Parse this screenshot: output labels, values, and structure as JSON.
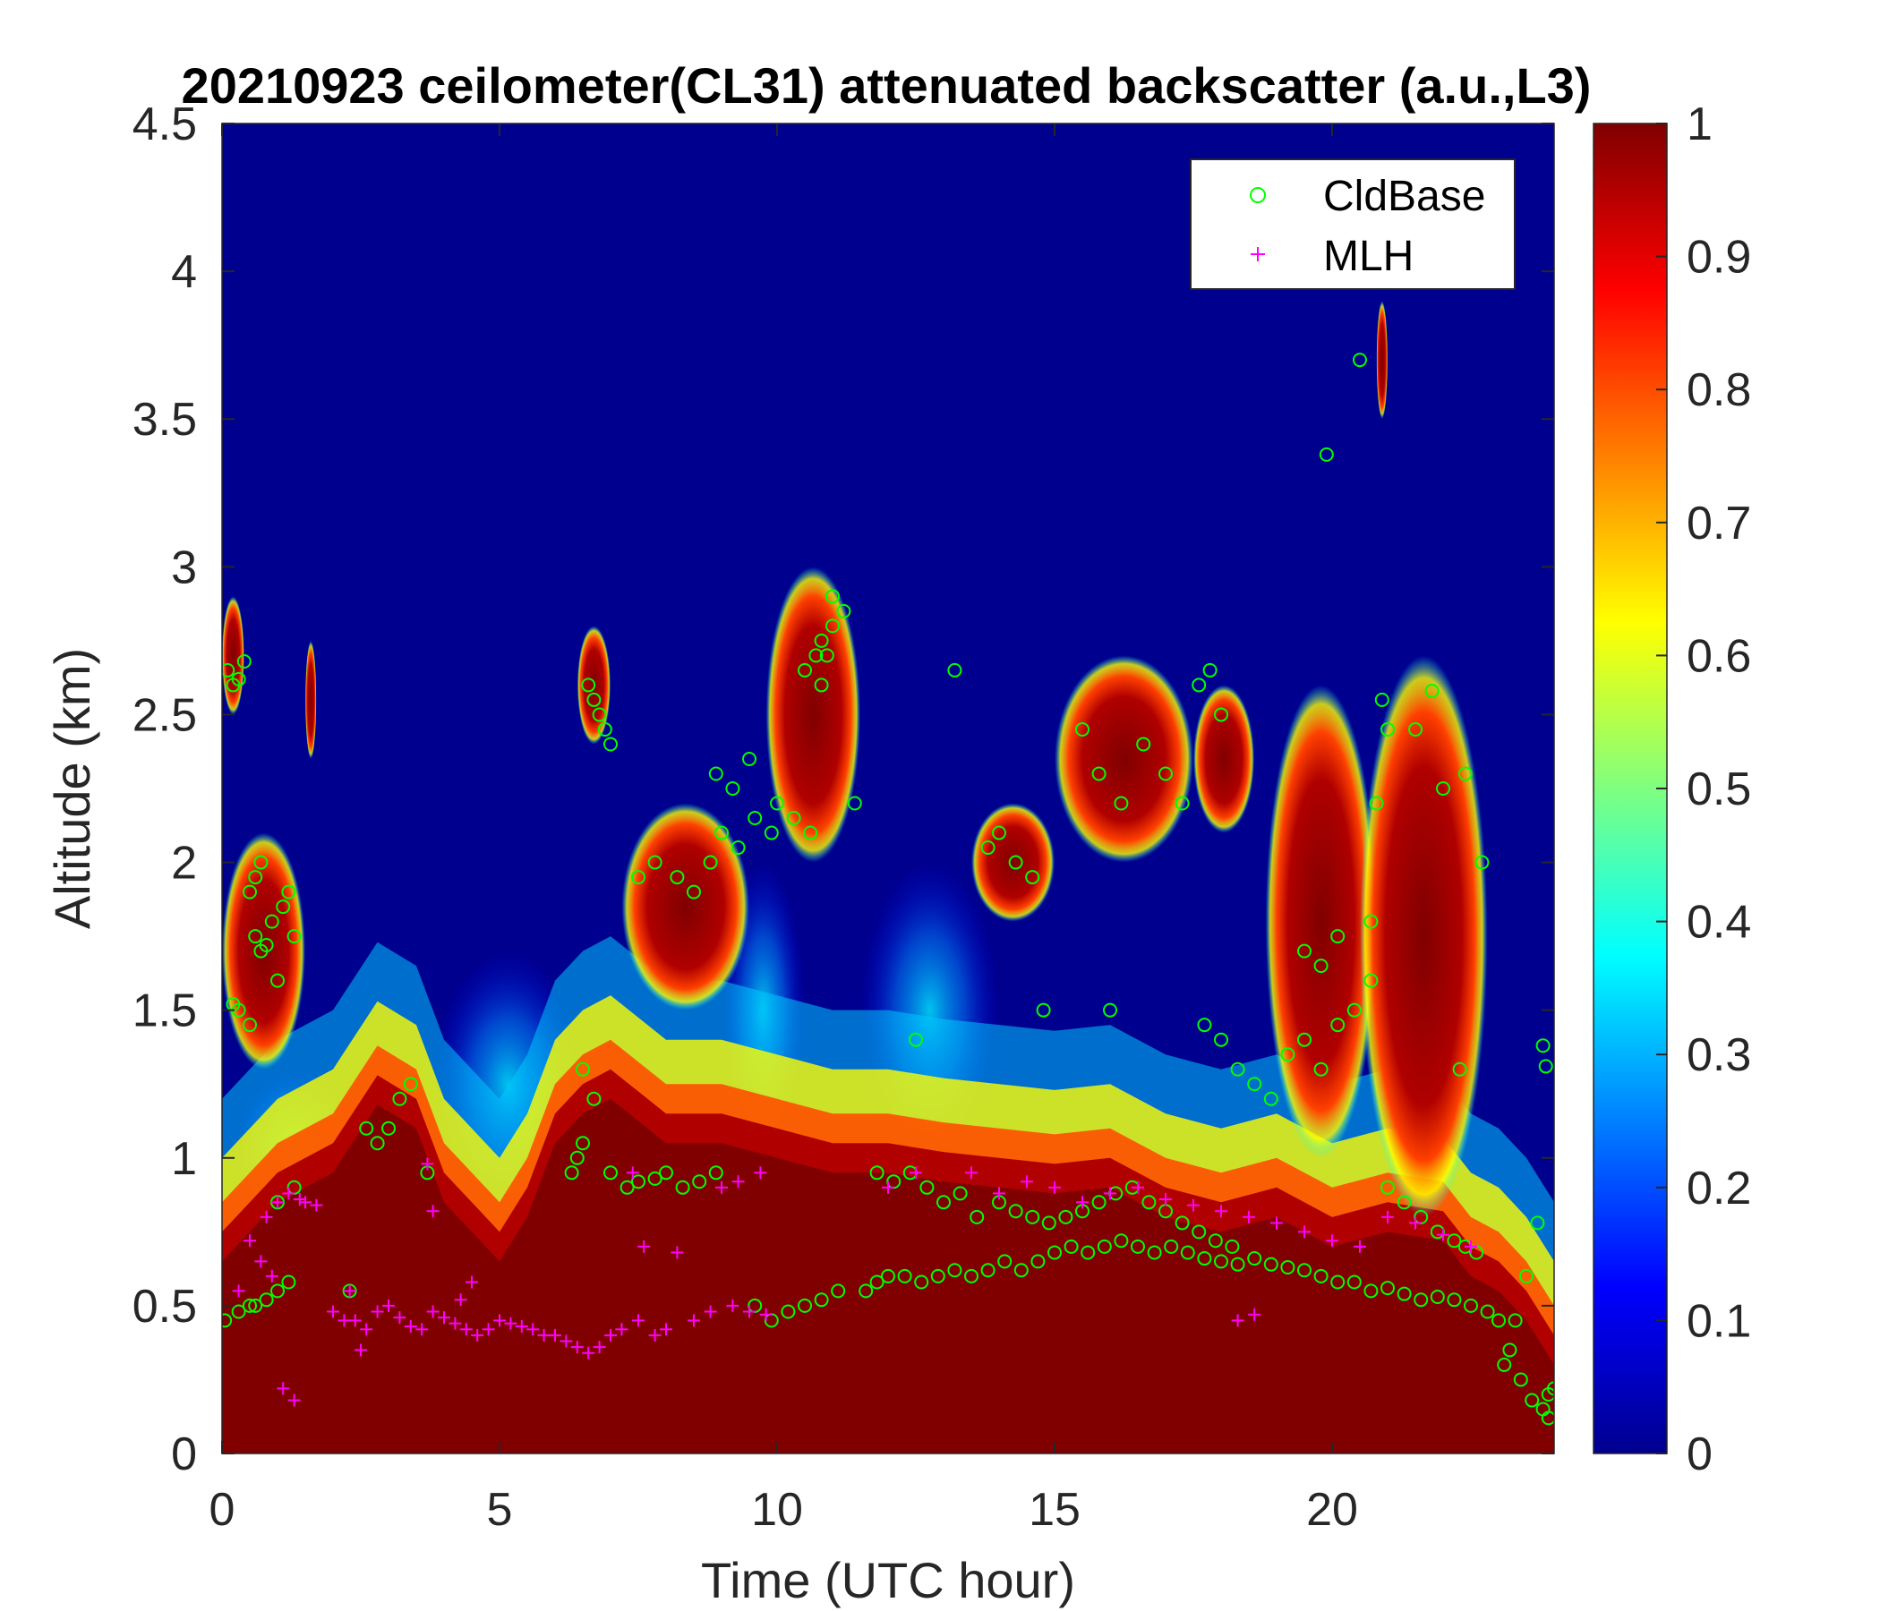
{
  "chart_data": {
    "type": "heatmap",
    "title": "20210923 ceilometer(CL31) attenuated backscatter (a.u.,L3)",
    "xlabel": "Time (UTC hour)",
    "ylabel": "Altitude (km)",
    "xlim": [
      0,
      24
    ],
    "ylim": [
      0,
      4.5
    ],
    "x_ticks": [
      0,
      5,
      10,
      15,
      20
    ],
    "x_tick_labels": [
      "0",
      "5",
      "10",
      "15",
      "20"
    ],
    "y_ticks": [
      0,
      0.5,
      1,
      1.5,
      2,
      2.5,
      3,
      3.5,
      4,
      4.5
    ],
    "y_tick_labels": [
      "0",
      "0.5",
      "1",
      "1.5",
      "2",
      "2.5",
      "3",
      "3.5",
      "4",
      "4.5"
    ],
    "colorbar": {
      "colormap": "jet",
      "clim": [
        0,
        1
      ],
      "ticks": [
        0,
        0.1,
        0.2,
        0.3,
        0.4,
        0.5,
        0.6,
        0.7,
        0.8,
        0.9,
        1
      ],
      "tick_labels": [
        "0",
        "0.1",
        "0.2",
        "0.3",
        "0.4",
        "0.5",
        "0.6",
        "0.7",
        "0.8",
        "0.9",
        "1"
      ]
    },
    "legend": {
      "placement": "top-right",
      "entries": [
        {
          "name": "CldBase",
          "marker": "circle",
          "color": "#00ff00"
        },
        {
          "name": "MLH",
          "marker": "plus",
          "color": "#ff00ff"
        }
      ]
    },
    "backscatter_layer_top_km": [
      [
        0,
        0.65
      ],
      [
        1,
        0.85
      ],
      [
        2,
        0.95
      ],
      [
        2.8,
        1.18
      ],
      [
        3.5,
        1.1
      ],
      [
        4,
        0.85
      ],
      [
        4.5,
        0.75
      ],
      [
        5,
        0.65
      ],
      [
        5.5,
        0.8
      ],
      [
        6,
        1.05
      ],
      [
        6.5,
        1.15
      ],
      [
        7,
        1.2
      ],
      [
        8,
        1.05
      ],
      [
        9,
        1.05
      ],
      [
        10,
        1.0
      ],
      [
        11,
        0.95
      ],
      [
        12,
        0.95
      ],
      [
        13,
        0.92
      ],
      [
        14,
        0.9
      ],
      [
        15,
        0.88
      ],
      [
        16,
        0.9
      ],
      [
        17,
        0.8
      ],
      [
        18,
        0.75
      ],
      [
        19,
        0.8
      ],
      [
        20,
        0.7
      ],
      [
        21,
        0.75
      ],
      [
        22,
        0.72
      ],
      [
        22.5,
        0.6
      ],
      [
        23,
        0.55
      ],
      [
        23.5,
        0.45
      ],
      [
        24,
        0.3
      ]
    ],
    "cloud_layers": [
      {
        "x": [
          0,
          0.4
        ],
        "y": [
          2.5,
          2.9
        ],
        "value": 0.9
      },
      {
        "x": [
          0.0,
          1.5
        ],
        "y": [
          1.3,
          2.1
        ],
        "value": 0.85
      },
      {
        "x": [
          1.5,
          1.7
        ],
        "y": [
          2.35,
          2.75
        ],
        "value": 0.85
      },
      {
        "x": [
          6.4,
          7.0
        ],
        "y": [
          2.4,
          2.8
        ],
        "value": 0.85
      },
      {
        "x": [
          7.2,
          9.5
        ],
        "y": [
          1.5,
          2.2
        ],
        "value": 0.9
      },
      {
        "x": [
          9.8,
          11.5
        ],
        "y": [
          2.0,
          3.0
        ],
        "value": 0.9
      },
      {
        "x": [
          13.5,
          15.0
        ],
        "y": [
          1.8,
          2.2
        ],
        "value": 0.85
      },
      {
        "x": [
          15.0,
          17.5
        ],
        "y": [
          2.0,
          2.7
        ],
        "value": 0.9
      },
      {
        "x": [
          17.5,
          18.6
        ],
        "y": [
          2.1,
          2.6
        ],
        "value": 0.95
      },
      {
        "x": [
          18.8,
          20.8
        ],
        "y": [
          1.0,
          2.6
        ],
        "value": 0.8
      },
      {
        "x": [
          20.5,
          22.8
        ],
        "y": [
          0.8,
          2.7
        ],
        "value": 0.85
      },
      {
        "x": [
          20.8,
          21.0
        ],
        "y": [
          3.5,
          3.9
        ],
        "value": 0.9
      }
    ],
    "aerosol_plumes": [
      {
        "x": [
          3.8,
          6.5
        ],
        "y": [
          0.8,
          1.7
        ],
        "value": 0.3
      },
      {
        "x": [
          0.2,
          2.5
        ],
        "y": [
          0.75,
          1.3
        ],
        "value": 0.25
      },
      {
        "x": [
          9.0,
          10.5
        ],
        "y": [
          1.0,
          2.0
        ],
        "value": 0.3
      },
      {
        "x": [
          11.5,
          14.0
        ],
        "y": [
          1.0,
          2.0
        ],
        "value": 0.2
      }
    ],
    "series": [
      {
        "name": "CldBase",
        "marker": "circle",
        "color": "#00ff00",
        "x": [
          0.05,
          0.1,
          0.2,
          0.3,
          0.4,
          0.2,
          0.3,
          0.5,
          0.6,
          0.7,
          0.8,
          0.9,
          1.0,
          1.1,
          1.2,
          1.3,
          0.6,
          0.7,
          0.5,
          0.5,
          0.8,
          1.0,
          1.2,
          0.3,
          0.6,
          1.0,
          1.3,
          2.3,
          2.6,
          2.8,
          3.0,
          3.2,
          3.4,
          3.7,
          6.3,
          6.4,
          6.5,
          6.6,
          6.7,
          6.8,
          6.9,
          7.0,
          6.5,
          6.7,
          7.0,
          7.3,
          7.5,
          7.8,
          8.0,
          8.3,
          8.6,
          8.9,
          7.5,
          7.8,
          8.2,
          8.5,
          8.8,
          9.0,
          9.3,
          9.6,
          9.9,
          8.9,
          9.2,
          9.5,
          10.0,
          10.3,
          10.6,
          10.8,
          10.9,
          11.0,
          11.2,
          11.4,
          10.5,
          10.7,
          10.8,
          11.0,
          9.6,
          9.9,
          10.2,
          10.5,
          10.8,
          11.1,
          11.6,
          11.8,
          12.0,
          12.3,
          12.6,
          12.9,
          13.2,
          13.5,
          13.8,
          14.1,
          14.4,
          14.7,
          15.0,
          15.3,
          15.6,
          15.9,
          16.2,
          16.5,
          16.8,
          17.1,
          17.4,
          17.7,
          18.0,
          18.3,
          18.6,
          18.9,
          19.2,
          19.5,
          19.8,
          20.1,
          20.4,
          20.7,
          21.0,
          21.3,
          21.6,
          21.9,
          22.2,
          22.5,
          22.8,
          23.0,
          23.2,
          23.4,
          23.6,
          23.8,
          23.9,
          11.8,
          12.1,
          12.4,
          12.7,
          13.0,
          13.3,
          13.6,
          14.0,
          14.3,
          14.6,
          14.9,
          15.2,
          15.5,
          15.8,
          16.1,
          16.4,
          16.7,
          17.0,
          17.3,
          17.6,
          17.9,
          18.2,
          13.8,
          14.0,
          14.3,
          14.6,
          15.5,
          15.8,
          16.2,
          16.6,
          17.0,
          17.3,
          17.6,
          17.8,
          18.0,
          17.7,
          18.0,
          18.3,
          18.6,
          18.9,
          19.2,
          19.5,
          19.8,
          20.1,
          20.4,
          20.7,
          19.5,
          19.8,
          20.1,
          20.7,
          21.0,
          21.3,
          21.6,
          21.9,
          22.2,
          22.4,
          22.6,
          20.9,
          21.0,
          20.8,
          21.5,
          22.0,
          22.4,
          13.2,
          12.5,
          14.8,
          16.0,
          19.9,
          20.5,
          22.7,
          23.8,
          23.85,
          23.7,
          23.5,
          23.3,
          23.1,
          23.9,
          24.0,
          21.8,
          22.3
        ],
        "y": [
          0.45,
          2.65,
          2.6,
          2.62,
          2.68,
          1.52,
          1.5,
          1.9,
          1.75,
          1.7,
          1.72,
          1.8,
          1.6,
          1.85,
          1.9,
          1.75,
          1.95,
          2.0,
          1.45,
          0.5,
          0.52,
          0.55,
          0.58,
          0.48,
          0.5,
          0.85,
          0.9,
          0.55,
          1.1,
          1.05,
          1.1,
          1.2,
          1.25,
          0.95,
          0.95,
          1.0,
          1.05,
          2.6,
          2.55,
          2.5,
          2.45,
          2.4,
          1.3,
          1.2,
          0.95,
          0.9,
          0.92,
          0.93,
          0.95,
          0.9,
          0.92,
          0.95,
          1.95,
          2.0,
          1.95,
          1.9,
          2.0,
          2.1,
          2.05,
          2.15,
          2.1,
          2.3,
          2.25,
          2.35,
          2.2,
          2.15,
          2.1,
          2.6,
          2.7,
          2.8,
          2.85,
          2.2,
          2.65,
          2.7,
          2.75,
          2.9,
          0.5,
          0.45,
          0.48,
          0.5,
          0.52,
          0.55,
          0.55,
          0.58,
          0.6,
          0.6,
          0.58,
          0.6,
          0.62,
          0.6,
          0.62,
          0.65,
          0.62,
          0.65,
          0.68,
          0.7,
          0.68,
          0.7,
          0.72,
          0.7,
          0.68,
          0.7,
          0.68,
          0.66,
          0.65,
          0.64,
          0.66,
          0.64,
          0.63,
          0.62,
          0.6,
          0.58,
          0.58,
          0.55,
          0.56,
          0.54,
          0.52,
          0.53,
          0.52,
          0.5,
          0.48,
          0.45,
          0.35,
          0.25,
          0.18,
          0.15,
          0.12,
          0.95,
          0.92,
          0.95,
          0.9,
          0.85,
          0.88,
          0.8,
          0.85,
          0.82,
          0.8,
          0.78,
          0.8,
          0.82,
          0.85,
          0.88,
          0.9,
          0.85,
          0.82,
          0.78,
          0.75,
          0.72,
          0.7,
          2.05,
          2.1,
          2.0,
          1.95,
          2.45,
          2.3,
          2.2,
          2.4,
          2.3,
          2.2,
          2.6,
          2.65,
          2.5,
          1.45,
          1.4,
          1.3,
          1.25,
          1.2,
          1.35,
          1.4,
          1.3,
          1.45,
          1.5,
          1.6,
          1.7,
          1.65,
          1.75,
          1.8,
          0.9,
          0.85,
          0.8,
          0.75,
          0.72,
          0.7,
          0.68,
          2.55,
          2.45,
          2.2,
          2.45,
          2.25,
          2.3,
          2.65,
          1.4,
          1.5,
          1.5,
          3.38,
          3.7,
          2.0,
          1.38,
          1.31,
          0.78,
          0.6,
          0.45,
          0.3,
          0.2,
          0.22,
          2.58,
          1.3
        ],
        "note": ""
      },
      {
        "name": "MLH",
        "marker": "plus",
        "color": "#ff00ff",
        "x": [
          0.3,
          0.5,
          0.8,
          1.0,
          1.2,
          1.4,
          1.5,
          1.7,
          2.0,
          2.2,
          2.4,
          2.6,
          2.8,
          3.0,
          3.2,
          3.4,
          3.6,
          3.8,
          4.0,
          4.2,
          4.4,
          4.6,
          4.8,
          5.0,
          5.2,
          5.4,
          5.6,
          5.8,
          6.0,
          6.2,
          6.4,
          6.6,
          6.8,
          7.0,
          7.2,
          7.5,
          7.8,
          8.0,
          8.5,
          8.8,
          9.2,
          9.5,
          9.8,
          1.1,
          1.3,
          0.7,
          0.9,
          2.3,
          2.5,
          3.7,
          3.8,
          4.3,
          4.5,
          7.4,
          7.6,
          8.2,
          13.5,
          14.0,
          14.5,
          15.0,
          15.5,
          16.0,
          16.5,
          17.0,
          17.5,
          18.0,
          18.5,
          19.0,
          19.5,
          20.0,
          20.5,
          21.0,
          21.5,
          22.0,
          22.5,
          18.3,
          18.6,
          12.0,
          12.5,
          9.0,
          9.3,
          9.7
        ],
        "y": [
          0.55,
          0.72,
          0.8,
          0.85,
          0.88,
          0.86,
          0.85,
          0.84,
          0.48,
          0.45,
          0.45,
          0.42,
          0.48,
          0.5,
          0.46,
          0.43,
          0.42,
          0.48,
          0.46,
          0.44,
          0.42,
          0.4,
          0.42,
          0.45,
          0.44,
          0.43,
          0.42,
          0.4,
          0.4,
          0.38,
          0.36,
          0.34,
          0.36,
          0.4,
          0.42,
          0.45,
          0.4,
          0.42,
          0.45,
          0.48,
          0.5,
          0.48,
          0.47,
          0.22,
          0.18,
          0.65,
          0.6,
          0.55,
          0.35,
          0.98,
          0.82,
          0.52,
          0.58,
          0.95,
          0.7,
          0.68,
          0.95,
          0.88,
          0.92,
          0.9,
          0.85,
          0.88,
          0.9,
          0.86,
          0.84,
          0.82,
          0.8,
          0.78,
          0.75,
          0.72,
          0.7,
          0.8,
          0.78,
          0.74,
          0.7,
          0.45,
          0.47,
          0.9,
          0.95,
          0.9,
          0.92,
          0.95
        ],
        "note": ""
      }
    ]
  }
}
